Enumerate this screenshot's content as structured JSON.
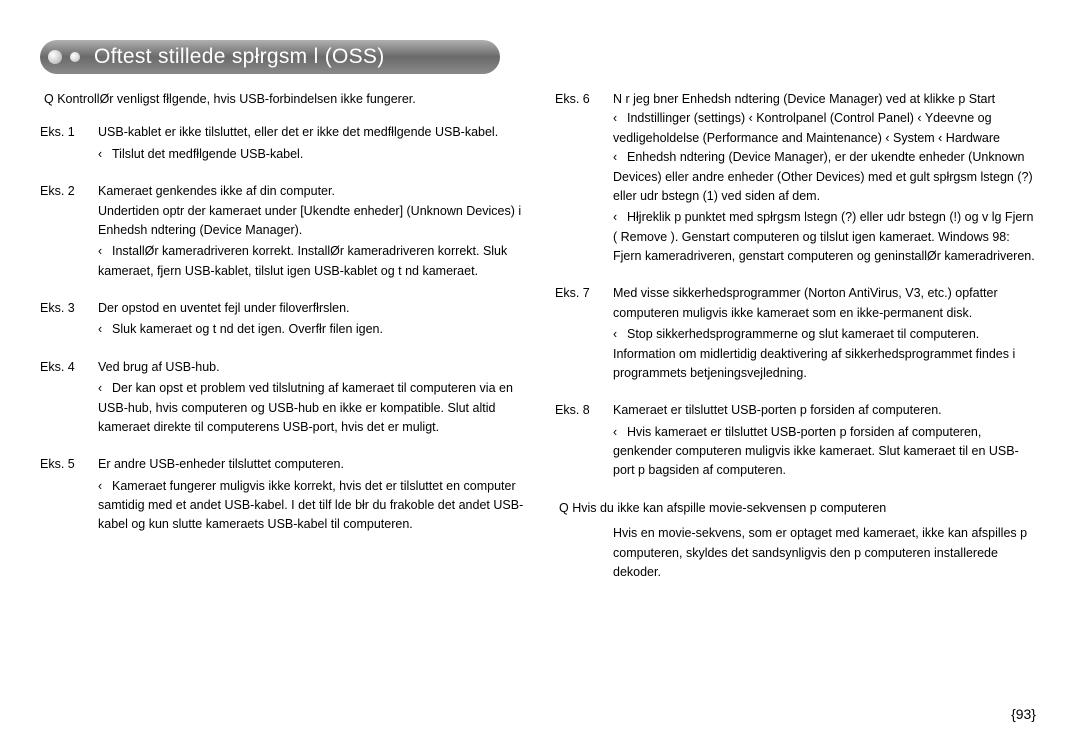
{
  "title": "Oftest stillede spłrgsm l (OSS)",
  "page_number": "{93}",
  "colors": {
    "text": "#000000",
    "title_text": "#ffffff",
    "pill_light": "#b0b0b0",
    "pill_dark": "#6a6a6a",
    "background": "#ffffff"
  },
  "left": {
    "intro": "Q  KontrollØr venligst fłlgende, hvis USB-forbindelsen ikke fungerer.",
    "items": [
      {
        "label": "Eks. 1",
        "line1": "USB-kablet er ikke tilsluttet, eller det er ikke det medfłlgende USB-kabel.",
        "sub1_arrow": "‹",
        "sub1": "Tilslut det medfłlgende USB-kabel."
      },
      {
        "label": "Eks. 2",
        "line1": "Kameraet genkendes ikke af din computer.",
        "line2": "Undertiden optr der kameraet under [Ukendte enheder] (Unknown Devices) i Enhedsh ndtering (Device Manager).",
        "sub1_arrow": "‹",
        "sub1": "InstallØr kameradriveren korrekt. InstallØr kameradriveren korrekt. Sluk kameraet, fjern USB-kablet, tilslut igen USB-kablet og t nd kameraet."
      },
      {
        "label": "Eks. 3",
        "line1": "Der opstod en uventet fejl under filoverfłrslen.",
        "sub1_arrow": "‹",
        "sub1": "Sluk kameraet og t nd det igen. Overfłr filen igen."
      },
      {
        "label": "Eks. 4",
        "line1": "Ved brug af USB-hub.",
        "sub1_arrow": "‹",
        "sub1": "Der kan opst  et problem ved tilslutning af kameraet til computeren via en USB-hub, hvis computeren og USB-hub en ikke er kompatible. Slut altid kameraet direkte til computerens USB-port, hvis det er muligt."
      },
      {
        "label": "Eks. 5",
        "line1": "Er andre USB-enheder tilsluttet computeren.",
        "sub1_arrow": "‹",
        "sub1": "Kameraet fungerer muligvis ikke korrekt, hvis det er tilsluttet en computer samtidig med et andet USB-kabel. I det tilf lde błr du frakoble det andet USB-kabel og kun slutte kameraets USB-kabel til computeren."
      }
    ]
  },
  "right": {
    "items": [
      {
        "label": "Eks. 6",
        "line1": "N r jeg  bner Enhedsh ndtering (Device Manager) ved at klikke p  Start",
        "line2_arrow": "‹",
        "line2": "Indstillinger (settings)  ‹  Kontrolpanel (Control Panel)  ‹  Ydeevne og vedligeholdelse (Performance and Maintenance)  ‹  System  ‹  Hardware",
        "line3_arrow": "‹",
        "line3": "Enhedsh ndtering (Device Manager), er der ukendte enheder (Unknown Devices) eller andre enheder (Other Devices) med et gult spłrgsm lstegn (?) eller udr bstegn (1) ved siden af dem.",
        "sub1_arrow": "‹",
        "sub1": "Hłjreklik p  punktet med spłrgsm lstegn (?) eller udr bstegn (!) og v lg  Fjern  ( Remove ). Genstart computeren og tilslut igen kameraet. Windows 98: Fjern kameradriveren, genstart computeren og geninstallØr kameradriveren."
      },
      {
        "label": "Eks. 7",
        "line1": "Med visse sikkerhedsprogrammer (Norton AntiVirus, V3, etc.) opfatter computeren muligvis ikke kameraet som en ikke-permanent disk.",
        "sub1_arrow": "‹",
        "sub1": "Stop sikkerhedsprogrammerne og slut kameraet til computeren. Information om midlertidig deaktivering af sikkerhedsprogrammet findes i programmets betjeningsvejledning."
      },
      {
        "label": "Eks. 8",
        "line1": "Kameraet er tilsluttet USB-porten p  forsiden af computeren.",
        "sub1_arrow": "‹",
        "sub1": "Hvis kameraet er tilsluttet USB-porten p  forsiden af computeren, genkender computeren muligvis ikke kameraet. Slut kameraet til en USB-port p  bagsiden af computeren."
      }
    ],
    "q2_label": "Q  Hvis du ikke kan afspille movie-sekvensen p  computeren",
    "q2_body": "Hvis en movie-sekvens, som er optaget med kameraet, ikke kan afspilles p computeren, skyldes det sandsynligvis den p  computeren installerede dekoder."
  }
}
